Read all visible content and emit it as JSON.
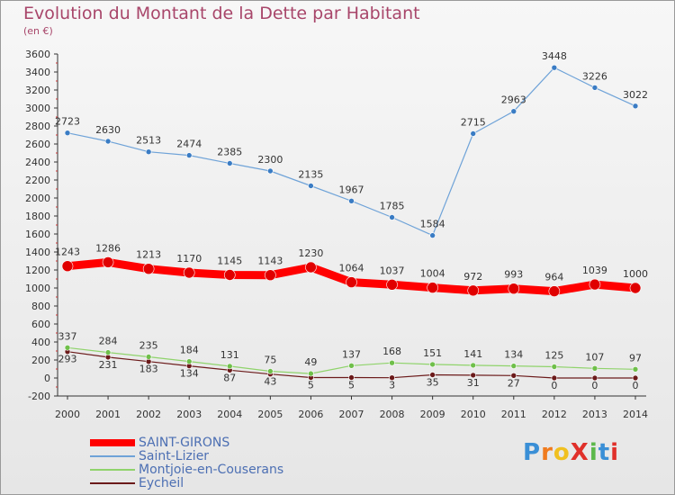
{
  "chart_data": {
    "type": "line",
    "title": "Evolution du Montant de la Dette par Habitant",
    "subtitle": "(en €)",
    "categories": [
      "2000",
      "2001",
      "2002",
      "2003",
      "2004",
      "2005",
      "2006",
      "2007",
      "2008",
      "2009",
      "2010",
      "2011",
      "2012",
      "2013",
      "2014"
    ],
    "ylim": [
      -200,
      3600
    ],
    "yticks": [
      -200,
      0,
      200,
      400,
      600,
      800,
      1000,
      1200,
      1400,
      1600,
      1800,
      2000,
      2200,
      2400,
      2600,
      2800,
      3000,
      3200,
      3400,
      3600
    ],
    "grid": false,
    "legend_position": "bottom-left",
    "series": [
      {
        "name": "SAINT-GIRONS",
        "color": "#ff0000",
        "values": [
          1243,
          1286,
          1213,
          1170,
          1145,
          1143,
          1230,
          1064,
          1037,
          1004,
          972,
          993,
          964,
          1039,
          1000
        ]
      },
      {
        "name": "Saint-Lizier",
        "color": "#6fa3d8",
        "values": [
          2723,
          2630,
          2513,
          2474,
          2385,
          2300,
          2135,
          1967,
          1785,
          1584,
          2715,
          2963,
          3448,
          3226,
          3022
        ]
      },
      {
        "name": "Montjoie-en-Couserans",
        "color": "#8fd36b",
        "values": [
          337,
          284,
          235,
          184,
          131,
          75,
          49,
          137,
          168,
          151,
          141,
          134,
          125,
          107,
          97
        ]
      },
      {
        "name": "Eycheil",
        "color": "#6b1a1a",
        "values": [
          293,
          231,
          183,
          134,
          87,
          43,
          5,
          5,
          3,
          35,
          31,
          27,
          0,
          0,
          0
        ]
      }
    ]
  },
  "logo": {
    "text": "ProXiti"
  }
}
